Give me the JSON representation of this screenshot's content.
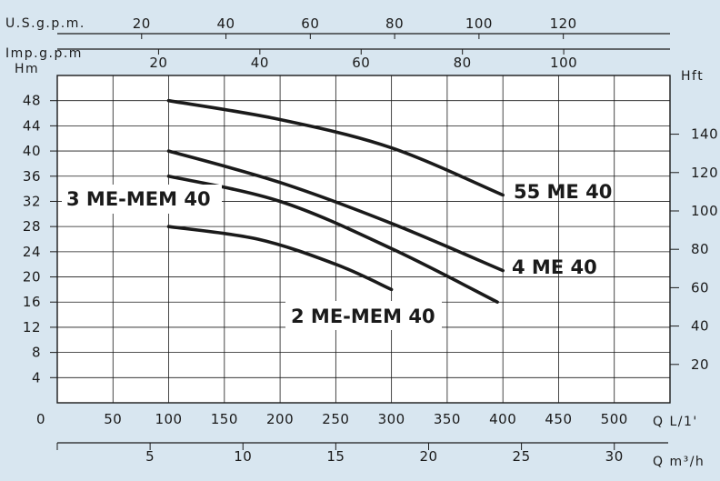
{
  "chart_data": {
    "type": "line",
    "colors": {
      "background": "#d8e6f0",
      "plot": "#ffffff",
      "ink": "#1a1a1a"
    },
    "axes": {
      "x_lpm": {
        "label": "Q L/1'",
        "ticks": [
          "0",
          "50",
          "100",
          "150",
          "200",
          "250",
          "300",
          "350",
          "400",
          "450",
          "500"
        ],
        "range": [
          0,
          550
        ]
      },
      "x_m3h": {
        "label": "Q m³/h",
        "ticks": [
          "5",
          "10",
          "15",
          "20",
          "25",
          "30"
        ]
      },
      "x_usgpm": {
        "label": "U.S.g.p.m.",
        "ticks": [
          "20",
          "40",
          "60",
          "80",
          "100",
          "120"
        ]
      },
      "x_impgpm": {
        "label": "Imp.g.p.m",
        "ticks": [
          "20",
          "40",
          "60",
          "80",
          "100"
        ]
      },
      "y_m": {
        "label": "Hm",
        "ticks": [
          "4",
          "8",
          "12",
          "16",
          "20",
          "24",
          "28",
          "32",
          "36",
          "40",
          "44",
          "48"
        ],
        "range": [
          0,
          52
        ]
      },
      "y_ft": {
        "label": "Hft",
        "ticks": [
          "20",
          "40",
          "60",
          "80",
          "100",
          "120",
          "140"
        ]
      }
    },
    "grid": true,
    "series": [
      {
        "name": "55 ME 40",
        "x": [
          100,
          200,
          300,
          400
        ],
        "y": [
          48,
          45,
          40.5,
          33
        ]
      },
      {
        "name": "4 ME 40",
        "x": [
          100,
          200,
          300,
          400
        ],
        "y": [
          40,
          35,
          28.5,
          21
        ]
      },
      {
        "name": "3 ME-MEM 40",
        "x": [
          100,
          200,
          300,
          395
        ],
        "y": [
          36,
          32,
          24.5,
          16
        ]
      },
      {
        "name": "2 ME-MEM 40",
        "x": [
          100,
          180,
          250,
          300
        ],
        "y": [
          28,
          26,
          22,
          18
        ]
      }
    ]
  }
}
